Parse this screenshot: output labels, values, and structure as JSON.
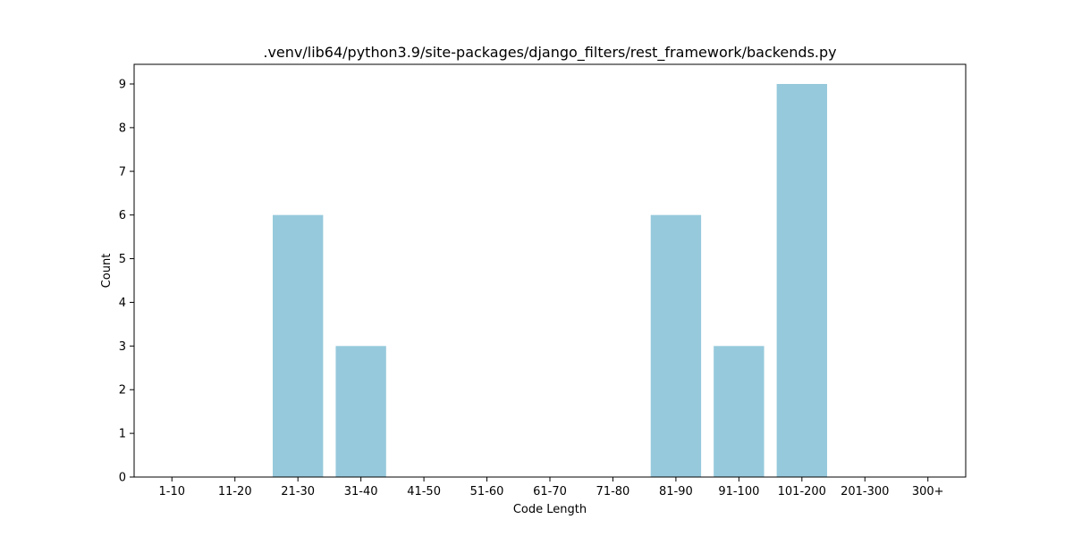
{
  "chart_data": {
    "type": "bar",
    "title": ".venv/lib64/python3.9/site-packages/django_filters/rest_framework/backends.py",
    "xlabel": "Code Length",
    "ylabel": "Count",
    "categories": [
      "1-10",
      "11-20",
      "21-30",
      "31-40",
      "41-50",
      "51-60",
      "61-70",
      "71-80",
      "81-90",
      "91-100",
      "101-200",
      "201-300",
      "300+"
    ],
    "values": [
      0,
      0,
      6,
      3,
      0,
      0,
      0,
      0,
      6,
      3,
      9,
      0,
      0
    ],
    "ylim": [
      0,
      9.45
    ],
    "yticks": [
      0,
      1,
      2,
      3,
      4,
      5,
      6,
      7,
      8,
      9
    ],
    "bar_color": "#96c9dc",
    "grid": false,
    "legend": "none"
  }
}
